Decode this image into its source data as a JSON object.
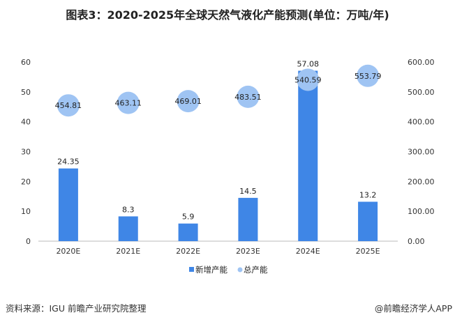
{
  "title": "图表3：2020-2025年全球天然气液化产能预测(单位：万吨/年)",
  "source": "资料来源：IGU 前瞻产业研究院整理",
  "credit": "@前瞻经济学人APP",
  "colors": {
    "bar": "#3f86e6",
    "circle": "#9fc4f3"
  },
  "chart_data": {
    "type": "bar+scatter",
    "title": "图表3：2020-2025年全球天然气液化产能预测(单位：万吨/年)",
    "categories": [
      "2020E",
      "2021E",
      "2022E",
      "2023E",
      "2024E",
      "2025E"
    ],
    "series": [
      {
        "name": "新增产能",
        "type": "bar",
        "axis": "left",
        "values": [
          24.35,
          8.3,
          5.9,
          14.5,
          57.08,
          13.2
        ],
        "labels": [
          "24.35",
          "8.3",
          "5.9",
          "14.5",
          "57.08",
          "13.2"
        ]
      },
      {
        "name": "总产能",
        "type": "scatter",
        "axis": "right",
        "values": [
          454.81,
          463.11,
          469.01,
          483.51,
          540.59,
          553.79
        ],
        "labels": [
          "454.81",
          "463.11",
          "469.01",
          "483.51",
          "540.59",
          "553.79"
        ]
      }
    ],
    "left_axis": {
      "range": [
        0,
        60
      ],
      "ticks": [
        "0",
        "10",
        "20",
        "30",
        "40",
        "50",
        "60"
      ]
    },
    "right_axis": {
      "range": [
        0,
        600
      ],
      "ticks": [
        "0.00",
        "100.00",
        "200.00",
        "300.00",
        "400.00",
        "500.00",
        "600.00"
      ]
    },
    "legend": {
      "position": "bottom",
      "entries": [
        "新增产能",
        "总产能"
      ]
    },
    "grid": false
  }
}
